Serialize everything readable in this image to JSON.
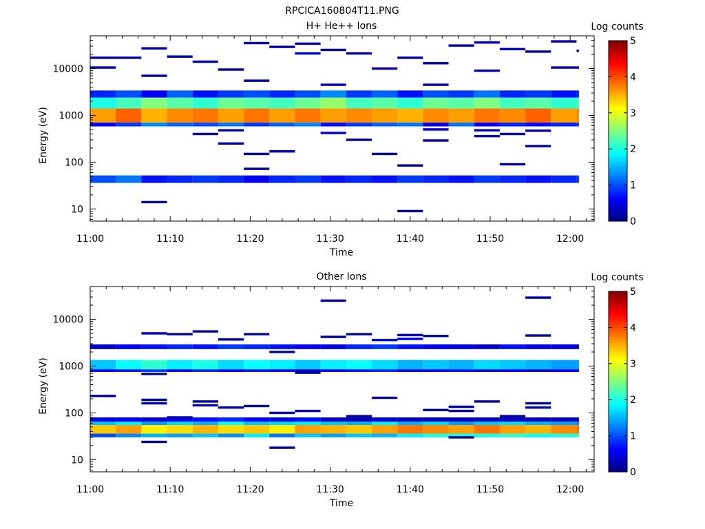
{
  "figure_title": "RPCICA160804T11.PNG",
  "colorbar": {
    "label": "Log counts",
    "ticks": [
      "0",
      "1",
      "2",
      "3",
      "4",
      "5"
    ],
    "range": [
      0,
      5
    ],
    "colormap": "jet"
  },
  "chart_data": [
    {
      "type": "heatmap",
      "title": "H+ He++ Ions",
      "xlabel": "Time",
      "ylabel": "Energy (eV)",
      "xlim": [
        "11:00",
        "12:03"
      ],
      "ylim": [
        5.5,
        50000
      ],
      "yscale": "log",
      "x_ticks": [
        "11:00",
        "11:10",
        "11:20",
        "11:30",
        "11:40",
        "11:50",
        "12:00"
      ],
      "y_ticks": [
        "10",
        "100",
        "1000",
        "10000"
      ],
      "time_bins_min": [
        0,
        3.2,
        6.4,
        9.6,
        12.8,
        16,
        19.2,
        22.4,
        25.6,
        28.8,
        32,
        35.2,
        38.4,
        41.6,
        44.8,
        48,
        51.2,
        54.4,
        57.6,
        60.8
      ],
      "value_units": "log10 counts",
      "bands": [
        {
          "e_low": 700,
          "e_high": 1400,
          "values": [
            3.6,
            3.9,
            3.5,
            3.7,
            3.8,
            3.6,
            3.8,
            3.6,
            3.8,
            3.6,
            3.7,
            3.6,
            3.5,
            3.7,
            3.6,
            3.8,
            3.7,
            3.9,
            3.6,
            3.7
          ]
        },
        {
          "e_low": 580,
          "e_high": 700,
          "values": [
            0.6,
            0.9,
            1.3,
            1.1,
            1.0,
            1.2,
            0.9,
            1.1,
            1.3,
            0.7,
            0.9,
            1.1,
            1.2,
            0.5,
            1.2,
            0.6,
            0.8,
            0.7,
            0.8,
            0.9
          ]
        },
        {
          "e_low": 1400,
          "e_high": 2400,
          "values": [
            2.0,
            2.2,
            2.5,
            2.3,
            2.1,
            2.4,
            2.3,
            2.2,
            2.4,
            2.6,
            2.2,
            2.3,
            2.1,
            2.4,
            2.3,
            2.5,
            2.2,
            2.3,
            2.1,
            2.2
          ]
        },
        {
          "e_low": 2400,
          "e_high": 3400,
          "values": [
            0.8,
            1.0,
            0.6,
            1.1,
            0.7,
            0.9,
            1.0,
            0.8,
            1.0,
            1.3,
            0.9,
            1.1,
            0.7,
            1.0,
            0.9,
            1.2,
            0.8,
            0.9,
            0.7,
            0.8
          ]
        },
        {
          "e_low": 36,
          "e_high": 52,
          "values": [
            1.0,
            1.2,
            0.7,
            0.8,
            0.9,
            0.8,
            0.6,
            0.8,
            0.9,
            0.7,
            0.8,
            0.7,
            0.9,
            0.8,
            0.7,
            0.9,
            0.8,
            0.7,
            0.8,
            0.9
          ]
        }
      ],
      "sparse_cells": [
        [
          0,
          10500,
          0.2
        ],
        [
          0,
          17000,
          0.2
        ],
        [
          3.2,
          17000,
          0.2
        ],
        [
          6.4,
          27000,
          0.2
        ],
        [
          6.4,
          7000,
          0.2
        ],
        [
          9.6,
          18000,
          0.2
        ],
        [
          12.8,
          14000,
          0.2
        ],
        [
          16,
          9500,
          0.2
        ],
        [
          19.2,
          35000,
          0.2
        ],
        [
          19.2,
          5500,
          0.2
        ],
        [
          22.4,
          29000,
          0.2
        ],
        [
          25.6,
          34000,
          0.3
        ],
        [
          25.6,
          21000,
          0.5
        ],
        [
          28.8,
          25000,
          0.2
        ],
        [
          28.8,
          4500,
          0.4
        ],
        [
          32,
          21000,
          0.2
        ],
        [
          35.2,
          10000,
          0.2
        ],
        [
          38.4,
          17000,
          0.2
        ],
        [
          41.6,
          13000,
          0.2
        ],
        [
          41.6,
          4500,
          0.3
        ],
        [
          44.8,
          31000,
          0.2
        ],
        [
          48,
          36000,
          0.3
        ],
        [
          48,
          9000,
          0.2
        ],
        [
          51.2,
          26000,
          0.3
        ],
        [
          54.4,
          23000,
          0.2
        ],
        [
          57.6,
          38000,
          0.2
        ],
        [
          57.6,
          10500,
          0.2
        ],
        [
          60.8,
          24000,
          0.2
        ],
        [
          60.8,
          10500,
          0.2
        ],
        [
          16,
          250,
          0.2
        ],
        [
          12.8,
          400,
          0.2
        ],
        [
          16,
          480,
          0.3
        ],
        [
          19.2,
          150,
          0.2
        ],
        [
          19.2,
          72,
          0.2
        ],
        [
          22.4,
          170,
          0.2
        ],
        [
          28.8,
          420,
          0.4
        ],
        [
          32,
          300,
          0.2
        ],
        [
          35.2,
          150,
          0.2
        ],
        [
          38.4,
          85,
          0.1
        ],
        [
          41.6,
          500,
          0.4
        ],
        [
          41.6,
          290,
          0.2
        ],
        [
          48,
          480,
          0.3
        ],
        [
          48,
          360,
          0.2
        ],
        [
          51.2,
          400,
          0.4
        ],
        [
          51.2,
          90,
          0.2
        ],
        [
          54.4,
          220,
          0.2
        ],
        [
          54.4,
          470,
          0.2
        ],
        [
          6.4,
          14,
          0.1
        ],
        [
          38.4,
          9,
          0.1
        ]
      ]
    },
    {
      "type": "heatmap",
      "title": "Other Ions",
      "xlabel": "Time",
      "ylabel": "Energy (eV)",
      "xlim": [
        "11:00",
        "12:03"
      ],
      "ylim": [
        5.5,
        50000
      ],
      "yscale": "log",
      "x_ticks": [
        "11:00",
        "11:10",
        "11:20",
        "11:30",
        "11:40",
        "11:50",
        "12:00"
      ],
      "y_ticks": [
        "10",
        "100",
        "1000",
        "10000"
      ],
      "time_bins_min": [
        0,
        3.2,
        6.4,
        9.6,
        12.8,
        16,
        19.2,
        22.4,
        25.6,
        28.8,
        32,
        35.2,
        38.4,
        41.6,
        44.8,
        48,
        51.2,
        54.4,
        57.6,
        60.8
      ],
      "value_units": "log10 counts",
      "bands": [
        {
          "e_low": 850,
          "e_high": 1350,
          "values": [
            1.6,
            1.9,
            2.1,
            1.8,
            2.0,
            1.7,
            1.9,
            1.8,
            1.6,
            1.8,
            1.9,
            1.7,
            1.5,
            1.6,
            1.5,
            1.7,
            1.6,
            1.5,
            1.4,
            1.4
          ]
        },
        {
          "e_low": 750,
          "e_high": 850,
          "values": [
            0.6,
            0.7,
            0.9,
            0.6,
            0.8,
            0.6,
            0.7,
            0.6,
            0.4,
            0.6,
            0.7,
            0.8,
            0.5,
            0.6,
            0.7,
            0.5,
            0.6,
            0.4,
            0.6,
            0.5
          ]
        },
        {
          "e_low": 2300,
          "e_high": 2900,
          "values": [
            0.4,
            0.6,
            0.7,
            0.8,
            0.7,
            0.9,
            0.8,
            0.7,
            0.6,
            0.5,
            0.8,
            0.9,
            0.7,
            0.6,
            0.5,
            0.6,
            0.7,
            0.5,
            0.5,
            0.3
          ]
        },
        {
          "e_low": 36,
          "e_high": 55,
          "values": [
            3.4,
            3.6,
            3.2,
            3.3,
            3.5,
            3.3,
            3.4,
            3.2,
            3.6,
            3.5,
            3.4,
            3.6,
            3.8,
            3.7,
            3.6,
            3.8,
            3.6,
            3.5,
            3.7,
            3.8
          ]
        },
        {
          "e_low": 30,
          "e_high": 36,
          "values": [
            1.0,
            1.3,
            1.5,
            1.4,
            1.6,
            1.3,
            1.8,
            1.2,
            1.6,
            1.4,
            1.6,
            1.5,
            1.8,
            2.0,
            1.9,
            2.0,
            2.1,
            1.9,
            2.0,
            2.2
          ]
        },
        {
          "e_low": 55,
          "e_high": 65,
          "values": [
            1.6,
            1.8,
            1.4,
            1.7,
            1.5,
            1.9,
            1.6,
            1.7,
            1.8,
            1.6,
            1.5,
            1.8,
            1.5,
            1.7,
            1.4,
            1.6,
            1.7,
            1.5,
            1.4,
            1.3
          ]
        },
        {
          "e_low": 65,
          "e_high": 80,
          "values": [
            0.5,
            0.6,
            0.4,
            0.6,
            0.7,
            0.8,
            0.6,
            0.5,
            0.7,
            0.3,
            0.3,
            0.4,
            0.3,
            0.3,
            0.3,
            0.3,
            0.3,
            0.3,
            0.3,
            0.3
          ]
        }
      ],
      "sparse_cells": [
        [
          0,
          230,
          0.2
        ],
        [
          6.4,
          190,
          0.2
        ],
        [
          6.4,
          160,
          0.2
        ],
        [
          9.6,
          80,
          0.2
        ],
        [
          12.8,
          175,
          0.2
        ],
        [
          12.8,
          145,
          0.2
        ],
        [
          16,
          130,
          0.2
        ],
        [
          19.2,
          140,
          0.2
        ],
        [
          22.4,
          100,
          0.3
        ],
        [
          25.6,
          110,
          0.3
        ],
        [
          28.8,
          25000,
          0.2
        ],
        [
          32,
          85,
          0.1
        ],
        [
          35.2,
          210,
          0.2
        ],
        [
          41.6,
          115,
          0.2
        ],
        [
          44.8,
          135,
          0.2
        ],
        [
          44.8,
          110,
          0.2
        ],
        [
          48,
          175,
          0.2
        ],
        [
          51.2,
          85,
          0.2
        ],
        [
          54.4,
          160,
          0.2
        ],
        [
          54.4,
          130,
          0.2
        ],
        [
          6.4,
          5000,
          0.3
        ],
        [
          9.6,
          4800,
          0.2
        ],
        [
          12.8,
          5500,
          0.2
        ],
        [
          16,
          3700,
          0.3
        ],
        [
          19.2,
          4800,
          0.2
        ],
        [
          22.4,
          2000,
          0.2
        ],
        [
          28.8,
          4200,
          0.2
        ],
        [
          32,
          4800,
          0.2
        ],
        [
          35.2,
          3600,
          0.5
        ],
        [
          38.4,
          4600,
          0.3
        ],
        [
          38.4,
          3800,
          0.6
        ],
        [
          41.6,
          4400,
          0.2
        ],
        [
          48,
          2700,
          0.2
        ],
        [
          54.4,
          4500,
          0.2
        ],
        [
          54.4,
          29000,
          0.2
        ],
        [
          6.4,
          680,
          0.2
        ],
        [
          25.6,
          720,
          0.2
        ],
        [
          6.4,
          24,
          0.1
        ],
        [
          22.4,
          18,
          0.1
        ],
        [
          44.8,
          30,
          0.1
        ]
      ]
    }
  ]
}
